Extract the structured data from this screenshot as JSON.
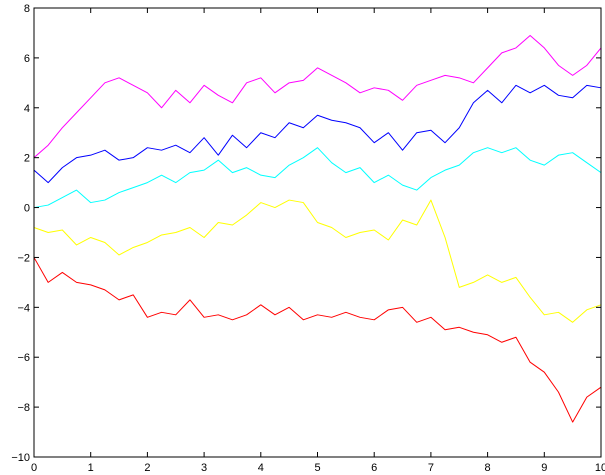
{
  "chart_data": {
    "type": "line",
    "title": "",
    "xlabel": "",
    "ylabel": "",
    "xlim": [
      0,
      10
    ],
    "ylim": [
      -10,
      8
    ],
    "x_ticks": [
      {
        "value": 0,
        "label": "0"
      },
      {
        "value": 1,
        "label": "1"
      },
      {
        "value": 2,
        "label": "2"
      },
      {
        "value": 3,
        "label": "3"
      },
      {
        "value": 4,
        "label": "4"
      },
      {
        "value": 5,
        "label": "5"
      },
      {
        "value": 6,
        "label": "6"
      },
      {
        "value": 7,
        "label": "7"
      },
      {
        "value": 8,
        "label": "8"
      },
      {
        "value": 9,
        "label": "9"
      },
      {
        "value": 10,
        "label": "10"
      }
    ],
    "y_ticks": [
      {
        "value": -10,
        "label": "−10"
      },
      {
        "value": -8,
        "label": "−8"
      },
      {
        "value": -6,
        "label": "−6"
      },
      {
        "value": -4,
        "label": "−4"
      },
      {
        "value": -2,
        "label": "−2"
      },
      {
        "value": 0,
        "label": "0"
      },
      {
        "value": 2,
        "label": "2"
      },
      {
        "value": 4,
        "label": "4"
      },
      {
        "value": 6,
        "label": "6"
      },
      {
        "value": 8,
        "label": "8"
      }
    ],
    "grid": false,
    "legend": "none",
    "x": [
      0,
      0.25,
      0.5,
      0.75,
      1,
      1.25,
      1.5,
      1.75,
      2,
      2.25,
      2.5,
      2.75,
      3,
      3.25,
      3.5,
      3.75,
      4,
      4.25,
      4.5,
      4.75,
      5,
      5.25,
      5.5,
      5.75,
      6,
      6.25,
      6.5,
      6.75,
      7,
      7.25,
      7.5,
      7.75,
      8,
      8.25,
      8.5,
      8.75,
      9,
      9.25,
      9.5,
      9.75,
      10
    ],
    "series": [
      {
        "color": "#ff00ff",
        "values": [
          2.0,
          2.5,
          3.2,
          3.8,
          4.4,
          5.0,
          5.2,
          4.9,
          4.6,
          4.0,
          4.7,
          4.2,
          4.9,
          4.5,
          4.2,
          5.0,
          5.2,
          4.6,
          5.0,
          5.1,
          5.6,
          5.3,
          5.0,
          4.6,
          4.8,
          4.7,
          4.3,
          4.9,
          5.1,
          5.3,
          5.2,
          5.0,
          5.6,
          6.2,
          6.4,
          6.9,
          6.4,
          5.7,
          5.3,
          5.7,
          6.4
        ]
      },
      {
        "color": "#0000ff",
        "values": [
          1.5,
          1.0,
          1.6,
          2.0,
          2.1,
          2.3,
          1.9,
          2.0,
          2.4,
          2.3,
          2.5,
          2.2,
          2.8,
          2.1,
          2.9,
          2.4,
          3.0,
          2.8,
          3.4,
          3.2,
          3.7,
          3.5,
          3.4,
          3.2,
          2.6,
          3.0,
          2.3,
          3.0,
          3.1,
          2.6,
          3.2,
          4.2,
          4.7,
          4.2,
          4.9,
          4.6,
          4.9,
          4.5,
          4.4,
          4.9,
          4.8
        ]
      },
      {
        "color": "#00ffff",
        "values": [
          0.0,
          0.1,
          0.4,
          0.7,
          0.2,
          0.3,
          0.6,
          0.8,
          1.0,
          1.3,
          1.0,
          1.4,
          1.5,
          1.9,
          1.4,
          1.6,
          1.3,
          1.2,
          1.7,
          2.0,
          2.4,
          1.8,
          1.4,
          1.6,
          1.0,
          1.3,
          0.9,
          0.7,
          1.2,
          1.5,
          1.7,
          2.2,
          2.4,
          2.2,
          2.4,
          1.9,
          1.7,
          2.1,
          2.2,
          1.8,
          1.4
        ]
      },
      {
        "color": "#ffff00",
        "values": [
          -0.8,
          -1.0,
          -0.9,
          -1.5,
          -1.2,
          -1.4,
          -1.9,
          -1.6,
          -1.4,
          -1.1,
          -1.0,
          -0.8,
          -1.2,
          -0.6,
          -0.7,
          -0.3,
          0.2,
          0.0,
          0.3,
          0.2,
          -0.6,
          -0.8,
          -1.2,
          -1.0,
          -0.9,
          -1.3,
          -0.5,
          -0.7,
          0.3,
          -1.2,
          -3.2,
          -3.0,
          -2.7,
          -3.0,
          -2.8,
          -3.6,
          -4.3,
          -4.2,
          -4.6,
          -4.1,
          -3.9
        ]
      },
      {
        "color": "#ff0000",
        "values": [
          -2.0,
          -3.0,
          -2.6,
          -3.0,
          -3.1,
          -3.3,
          -3.7,
          -3.5,
          -4.4,
          -4.2,
          -4.3,
          -3.7,
          -4.4,
          -4.3,
          -4.5,
          -4.3,
          -3.9,
          -4.3,
          -4.0,
          -4.5,
          -4.3,
          -4.4,
          -4.2,
          -4.4,
          -4.5,
          -4.1,
          -4.0,
          -4.6,
          -4.4,
          -4.9,
          -4.8,
          -5.0,
          -5.1,
          -5.4,
          -5.2,
          -6.2,
          -6.6,
          -7.4,
          -8.6,
          -7.6,
          -7.2
        ]
      }
    ]
  }
}
